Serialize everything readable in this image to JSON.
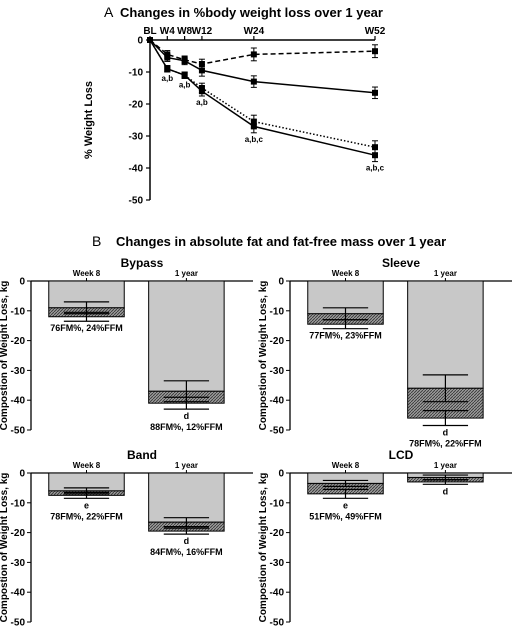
{
  "colors": {
    "fat_bar": "#c8c8c8",
    "ffm_bar": "#9a9a9a",
    "axis": "#000000"
  },
  "chart_data": [
    {
      "type": "line",
      "panel_letter": "A",
      "title": "Changes in %body weight loss over 1 year",
      "ylabel": "% Weight Loss",
      "ylim": [
        -50,
        0
      ],
      "yticks": [
        "0",
        "-10",
        "-20",
        "-30",
        "-40",
        "-50"
      ],
      "x": [
        0,
        4,
        8,
        12,
        24,
        52
      ],
      "xtick_labels": [
        "BL",
        "W4",
        "W8",
        "W12",
        "W24",
        "W52"
      ],
      "series": [
        {
          "line_style": "dashed",
          "values": [
            0,
            -4.5,
            -6.2,
            -7.5,
            -4.5,
            -3.5
          ],
          "errors": [
            0.6,
            1.2,
            1.2,
            1.5,
            2.0,
            2.0
          ],
          "point_labels": [
            "",
            "",
            "",
            "",
            "",
            ""
          ]
        },
        {
          "line_style": "solid",
          "values": [
            0,
            -5.5,
            -6.5,
            -9.5,
            -13.0,
            -16.5
          ],
          "errors": [
            0.6,
            1.2,
            1.2,
            1.8,
            1.8,
            1.8
          ],
          "point_labels": [
            "",
            "",
            "",
            "",
            "",
            ""
          ]
        },
        {
          "line_style": "dotted",
          "values": [
            0,
            -9.0,
            -11.0,
            -15.0,
            -25.5,
            -33.5
          ],
          "errors": [
            0.6,
            1.0,
            1.0,
            1.5,
            2.0,
            2.0
          ],
          "point_labels": [
            "",
            "",
            "",
            "",
            "",
            ""
          ]
        },
        {
          "line_style": "solid",
          "values": [
            0,
            -9.0,
            -11.0,
            -16.0,
            -27.0,
            -36.0
          ],
          "errors": [
            0.6,
            1.0,
            1.0,
            1.5,
            2.0,
            2.0
          ],
          "point_labels": [
            "",
            "a,b",
            "a,b",
            "a,b",
            "a,b,c",
            "a,b,c"
          ]
        }
      ]
    },
    {
      "type": "bar",
      "panel_letter": "B",
      "title": "Changes in absolute fat and fat-free mass over 1 year",
      "ylabel": "Compostion of Weight Loss, kg",
      "ylim": [
        -50,
        0
      ],
      "yticks": [
        "0",
        "-10",
        "-20",
        "-30",
        "-40",
        "-50"
      ],
      "categories": [
        "Week 8",
        "1 year"
      ],
      "panels": [
        {
          "name": "Bypass",
          "bars": [
            {
              "label": "Week 8",
              "fat": -9.0,
              "ffm": -3.0,
              "fat_err": 2.0,
              "total_err": 1.5,
              "annotation": "76FM%, 24%FFM",
              "letter": ""
            },
            {
              "label": "1 year",
              "fat": -37.0,
              "ffm": -4.0,
              "fat_err": 3.5,
              "total_err": 2.0,
              "annotation": "88FM%, 12%FFM",
              "letter": "d"
            }
          ]
        },
        {
          "name": "Sleeve",
          "bars": [
            {
              "label": "Week 8",
              "fat": -11.0,
              "ffm": -3.5,
              "fat_err": 2.0,
              "total_err": 1.5,
              "annotation": "77FM%, 23%FFM",
              "letter": ""
            },
            {
              "label": "1 year",
              "fat": -36.0,
              "ffm": -10.0,
              "fat_err": 4.5,
              "total_err": 2.5,
              "annotation": "78FM%, 22%FFM",
              "letter": "d"
            }
          ]
        },
        {
          "name": "Band",
          "bars": [
            {
              "label": "Week 8",
              "fat": -6.0,
              "ffm": -1.5,
              "fat_err": 1.0,
              "total_err": 1.0,
              "annotation": "78FM%, 22%FFM",
              "letter": "e"
            },
            {
              "label": "1 year",
              "fat": -16.5,
              "ffm": -3.0,
              "fat_err": 1.5,
              "total_err": 1.0,
              "annotation": "84FM%, 16%FFM",
              "letter": "d"
            }
          ]
        },
        {
          "name": "LCD",
          "bars": [
            {
              "label": "Week 8",
              "fat": -3.5,
              "ffm": -3.5,
              "fat_err": 1.0,
              "total_err": 1.5,
              "annotation": "51FM%, 49%FFM",
              "letter": "e"
            },
            {
              "label": "1 year",
              "fat": -1.5,
              "ffm": -1.5,
              "fat_err": 0.8,
              "total_err": 0.8,
              "annotation": "",
              "letter": "d"
            }
          ]
        }
      ]
    }
  ]
}
